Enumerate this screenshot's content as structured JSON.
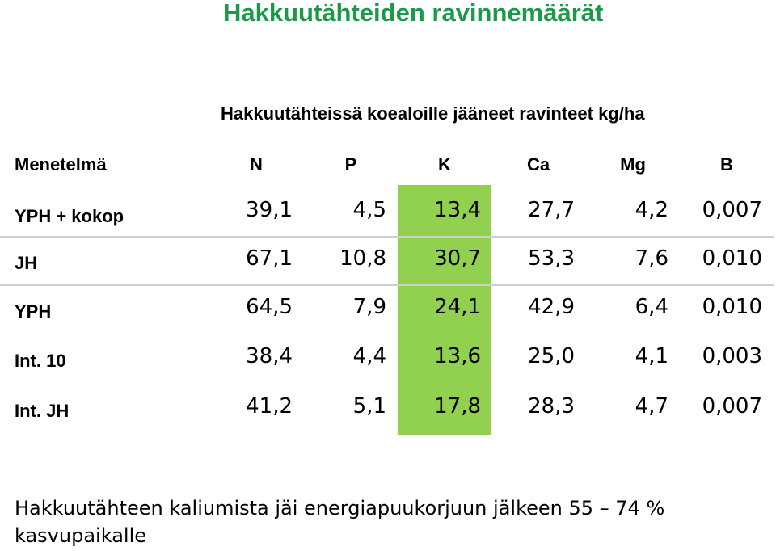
{
  "title": "Hakkuutähteiden ravinnemäärät",
  "table_caption": "Hakkuutähteissä koealoille jääneet ravinteet kg/ha",
  "highlight_color": "#92d050",
  "title_color": "#1a9a48",
  "columns": [
    "Menetelmä",
    "N",
    "P",
    "K",
    "Ca",
    "Mg",
    "B"
  ],
  "rows": [
    {
      "label": "YPH + kokop",
      "values": [
        "39,1",
        "4,5",
        "13,4",
        "27,7",
        "4,2",
        "0,007"
      ]
    },
    {
      "label": "JH",
      "values": [
        "67,1",
        "10,8",
        "30,7",
        "53,3",
        "7,6",
        "0,010"
      ]
    },
    {
      "label": "YPH",
      "values": [
        "64,5",
        "7,9",
        "24,1",
        "42,9",
        "6,4",
        "0,010"
      ]
    },
    {
      "label": "Int. 10",
      "values": [
        "38,4",
        "4,4",
        "13,6",
        "25,0",
        "4,1",
        "0,003"
      ]
    },
    {
      "label": "Int. JH",
      "values": [
        "41,2",
        "5,1",
        "17,8",
        "28,3",
        "4,7",
        "0,007"
      ]
    }
  ],
  "footnote": "Hakkuutähteen kaliumista jäi energiapuukorjuun jälkeen 55 – 74 % kasvupaikalle"
}
